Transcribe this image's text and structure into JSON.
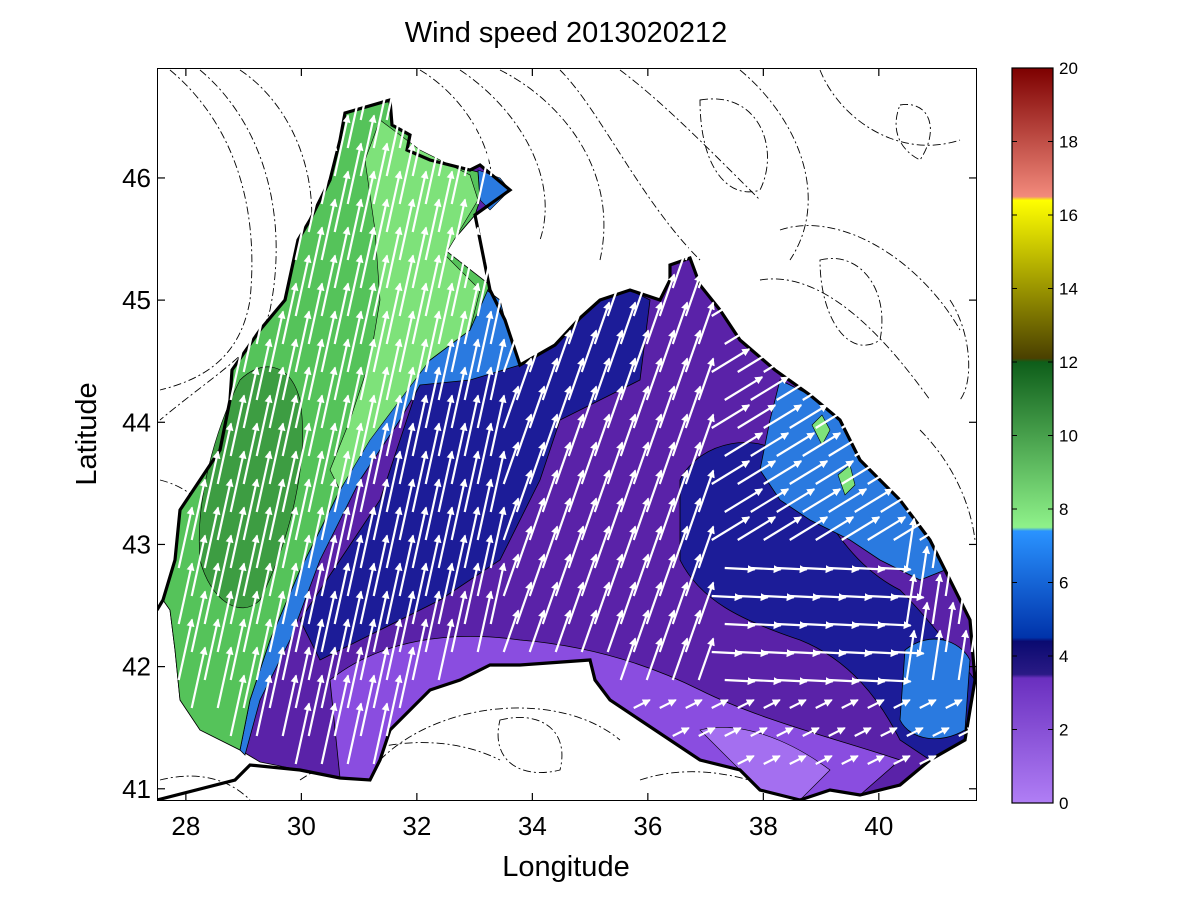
{
  "chart_data": {
    "type": "contour",
    "title": "Wind speed 2013020212",
    "xlabel": "Longitude",
    "ylabel": "Latitude",
    "xlim": [
      27.5,
      41.7
    ],
    "ylim": [
      40.9,
      46.9
    ],
    "xticks": [
      "28",
      "30",
      "32",
      "34",
      "36",
      "38",
      "40"
    ],
    "yticks": [
      "41",
      "42",
      "43",
      "44",
      "45",
      "46"
    ],
    "colorbar": {
      "range": [
        0,
        20
      ],
      "ticks": [
        "0",
        "2",
        "4",
        "6",
        "8",
        "10",
        "12",
        "14",
        "16",
        "18",
        "20"
      ],
      "bands": [
        {
          "from": 0,
          "to": 3.5,
          "color": "#8a4de0"
        },
        {
          "from": 3.5,
          "to": 4.5,
          "color": "#1a1a9c"
        },
        {
          "from": 4.5,
          "to": 7.5,
          "color": "#1f6be0"
        },
        {
          "from": 7.5,
          "to": 12,
          "color": "#49b54a"
        },
        {
          "from": 12,
          "to": 16.5,
          "color": "#8f8a10"
        },
        {
          "from": 16.5,
          "to": 20,
          "color": "#c8303a"
        }
      ]
    },
    "regions": [
      {
        "name": "speed 7.5-12",
        "color": "#55c35a"
      },
      {
        "name": "speed 4.5-7.5",
        "color": "#2a7ae0"
      },
      {
        "name": "speed 3.5-4.5",
        "color": "#1c1c98"
      },
      {
        "name": "speed 0-3.5",
        "color": "#5a22a8"
      }
    ],
    "wind_vectors_description": "white arrows, predominantly northward/north-northeastward across the western basin, northeast in center, eastward in the southeast"
  }
}
